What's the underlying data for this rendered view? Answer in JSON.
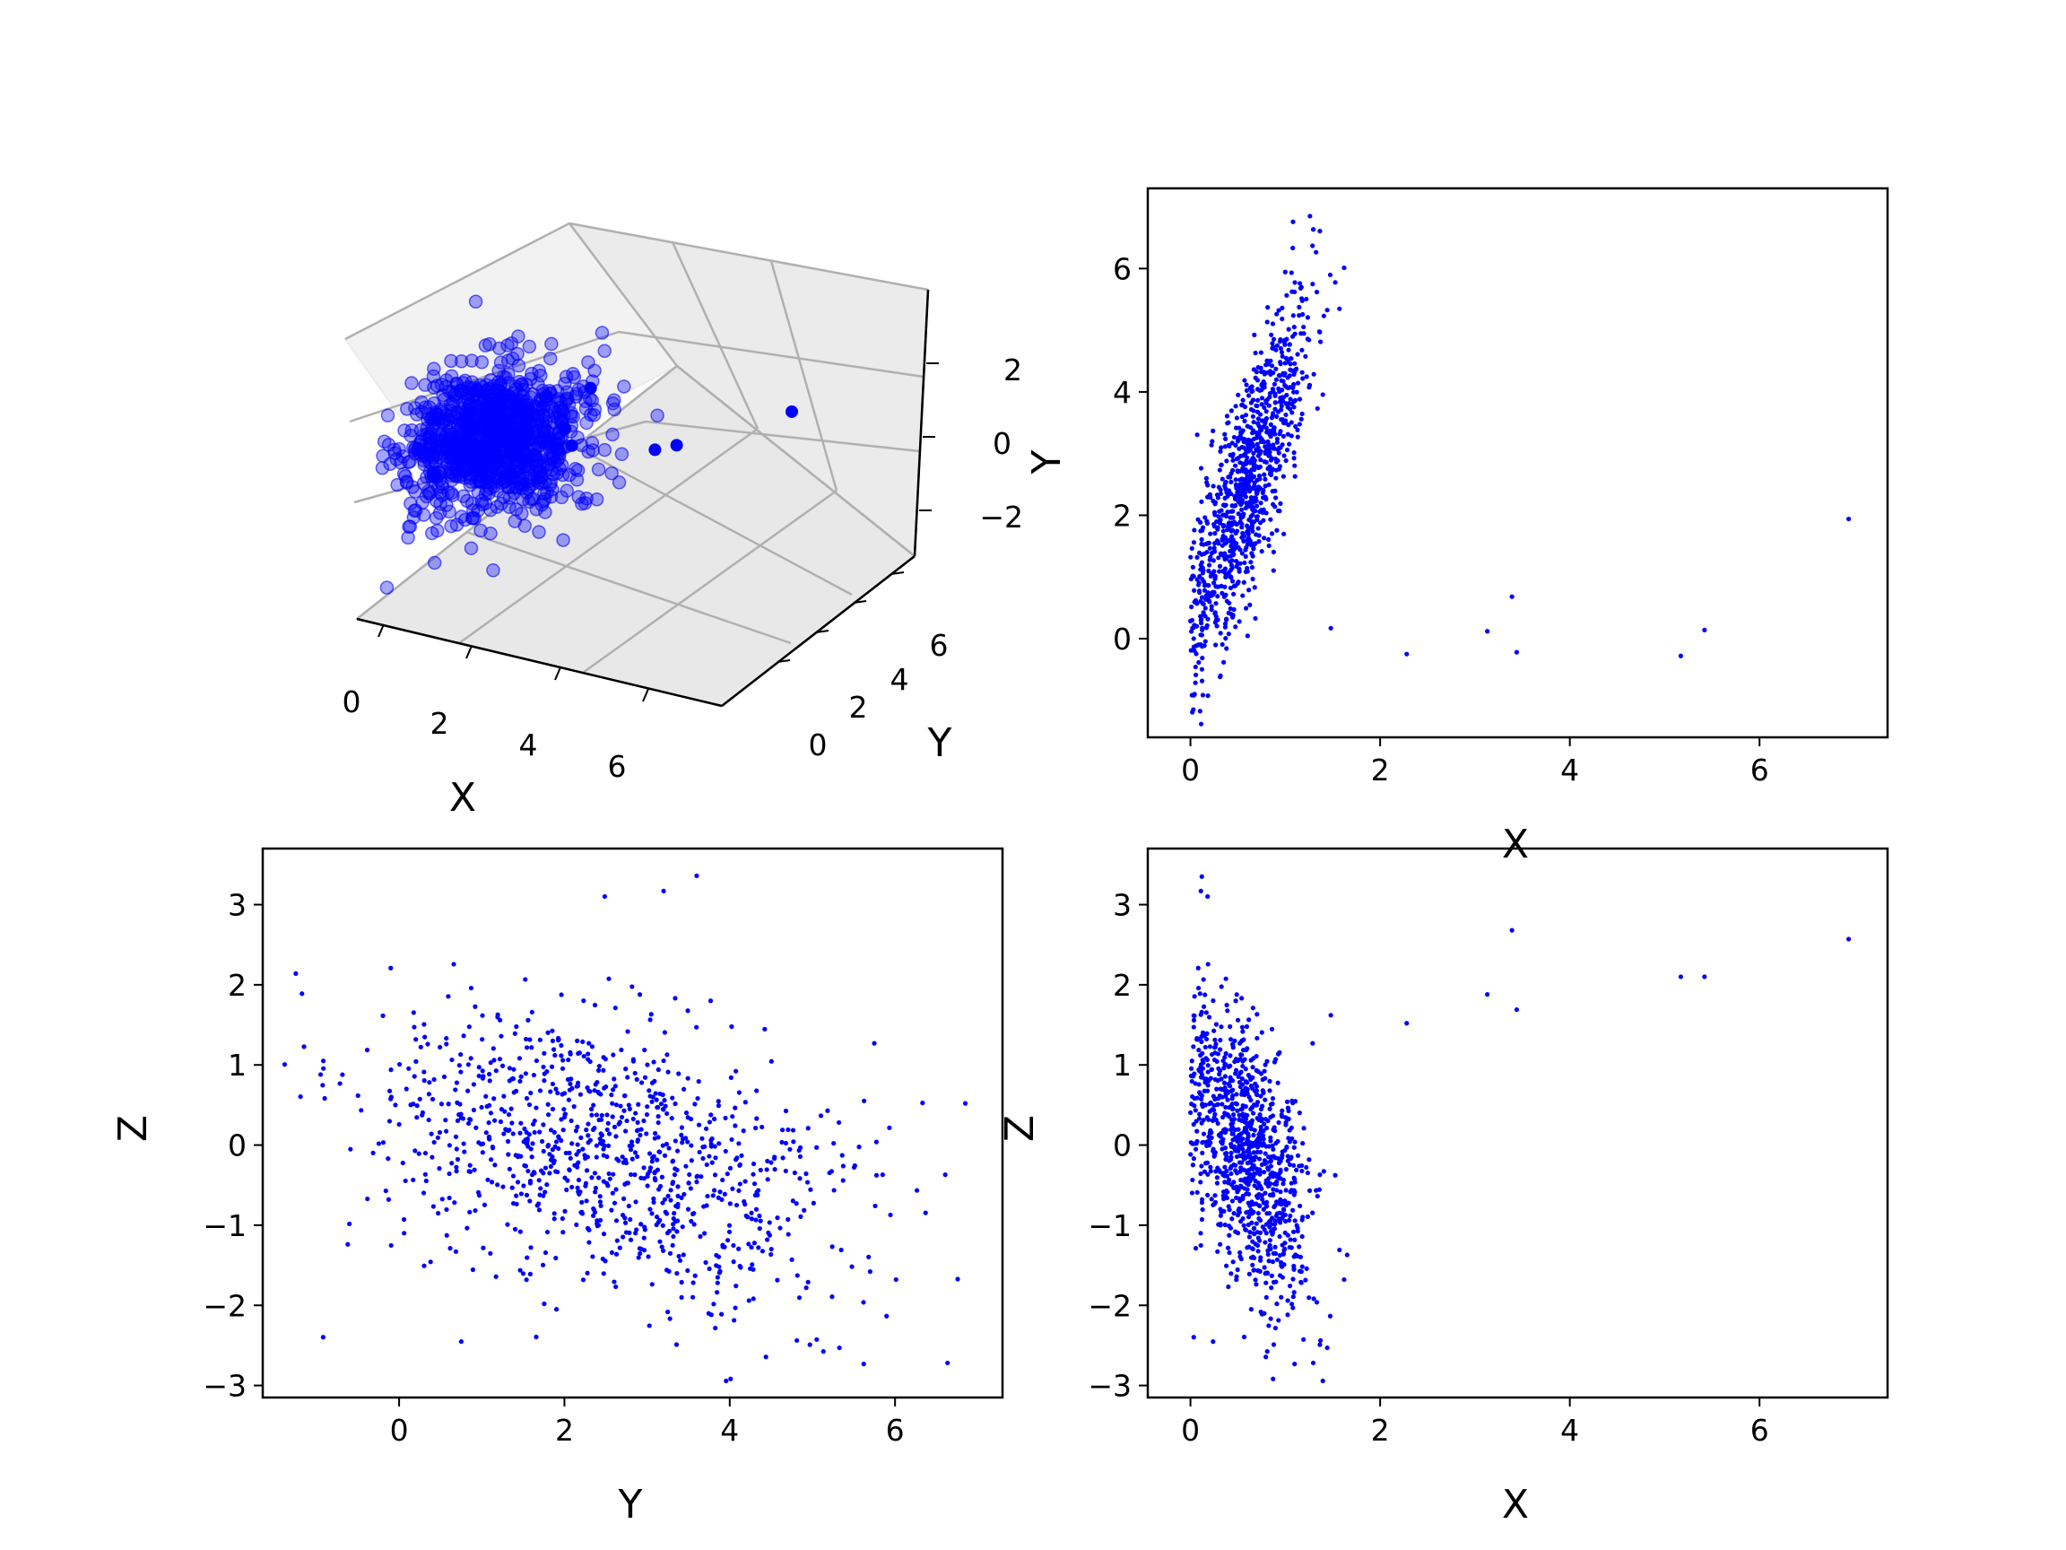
{
  "figure": {
    "background": "#ffffff",
    "marker_color": "#0000ff"
  },
  "chart_data": [
    {
      "type": "scatter",
      "projection": "3d",
      "xlabel": "X",
      "ylabel": "Y",
      "zlabel": "",
      "x_ticks": [
        "0",
        "2",
        "4",
        "6"
      ],
      "y_ticks": [
        "0",
        "2",
        "4",
        "6"
      ],
      "z_ticks": [
        "2",
        "0",
        "−2"
      ],
      "xlim": [
        -0.3,
        7.2
      ],
      "ylim": [
        -1.5,
        7.0
      ],
      "zlim": [
        -3.0,
        3.5
      ],
      "color": "#0000ff",
      "cluster": {
        "n": 1000,
        "x_mean": 0.6,
        "x_sd": 0.35,
        "y_mean": 2.5,
        "y_sd": 1.3,
        "z_mean": 0.0,
        "z_sd": 1.0
      },
      "outliers": [
        {
          "x": 1.48,
          "y": 0.17,
          "z": 1.62
        },
        {
          "x": 2.28,
          "y": -0.25,
          "z": 1.52
        },
        {
          "x": 3.13,
          "y": 0.12,
          "z": 1.88
        },
        {
          "x": 3.39,
          "y": 0.68,
          "z": 2.68
        },
        {
          "x": 3.44,
          "y": -0.22,
          "z": 1.69
        },
        {
          "x": 5.17,
          "y": -0.28,
          "z": 2.1
        },
        {
          "x": 5.42,
          "y": 0.14,
          "z": 2.1
        },
        {
          "x": 6.94,
          "y": 1.94,
          "z": 2.57
        }
      ]
    },
    {
      "type": "scatter",
      "xlabel": "X",
      "ylabel": "Y",
      "x_ticks": [
        0,
        2,
        4,
        6
      ],
      "y_ticks": [
        0,
        2,
        4,
        6
      ],
      "xlim": [
        -0.45,
        7.35
      ],
      "ylim": [
        -1.6,
        7.3
      ],
      "color": "#0000ff",
      "cluster_relation": "y correlated with x",
      "outliers": [
        {
          "x": 1.26,
          "y": 6.85
        },
        {
          "x": 1.48,
          "y": 0.17
        },
        {
          "x": 2.28,
          "y": -0.25
        },
        {
          "x": 3.13,
          "y": 0.12
        },
        {
          "x": 3.39,
          "y": 0.68
        },
        {
          "x": 3.44,
          "y": -0.22
        },
        {
          "x": 5.17,
          "y": -0.28
        },
        {
          "x": 5.42,
          "y": 0.14
        },
        {
          "x": 6.94,
          "y": 1.94
        }
      ]
    },
    {
      "type": "scatter",
      "xlabel": "Y",
      "ylabel": "Z",
      "x_ticks": [
        0,
        2,
        4,
        6
      ],
      "y_ticks": [
        3,
        2,
        1,
        0,
        -1,
        -2,
        -3
      ],
      "xlim": [
        -1.65,
        7.3
      ],
      "ylim": [
        -3.15,
        3.7
      ],
      "color": "#0000ff",
      "outliers": [
        {
          "x": -1.25,
          "y": 2.14
        },
        {
          "x": -0.95,
          "y": 0.88
        },
        {
          "x": 6.85,
          "y": 0.52
        },
        {
          "x": 5.85,
          "y": -0.37
        },
        {
          "x": 3.2,
          "y": 3.17
        },
        {
          "x": 3.6,
          "y": 3.36
        }
      ]
    },
    {
      "type": "scatter",
      "xlabel": "X",
      "ylabel": "Z",
      "x_ticks": [
        0,
        2,
        4,
        6
      ],
      "y_ticks": [
        3,
        2,
        1,
        0,
        -1,
        -2,
        -3
      ],
      "xlim": [
        -0.45,
        7.35
      ],
      "ylim": [
        -3.15,
        3.7
      ],
      "color": "#0000ff",
      "outliers": [
        {
          "x": 1.48,
          "y": 1.62
        },
        {
          "x": 2.28,
          "y": 1.52
        },
        {
          "x": 3.13,
          "y": 1.88
        },
        {
          "x": 3.39,
          "y": 2.68
        },
        {
          "x": 3.44,
          "y": 1.69
        },
        {
          "x": 5.17,
          "y": 2.1
        },
        {
          "x": 5.42,
          "y": 2.1
        },
        {
          "x": 6.94,
          "y": 2.57
        },
        {
          "x": 0.12,
          "y": 3.35
        },
        {
          "x": 0.11,
          "y": 3.17
        }
      ]
    }
  ]
}
